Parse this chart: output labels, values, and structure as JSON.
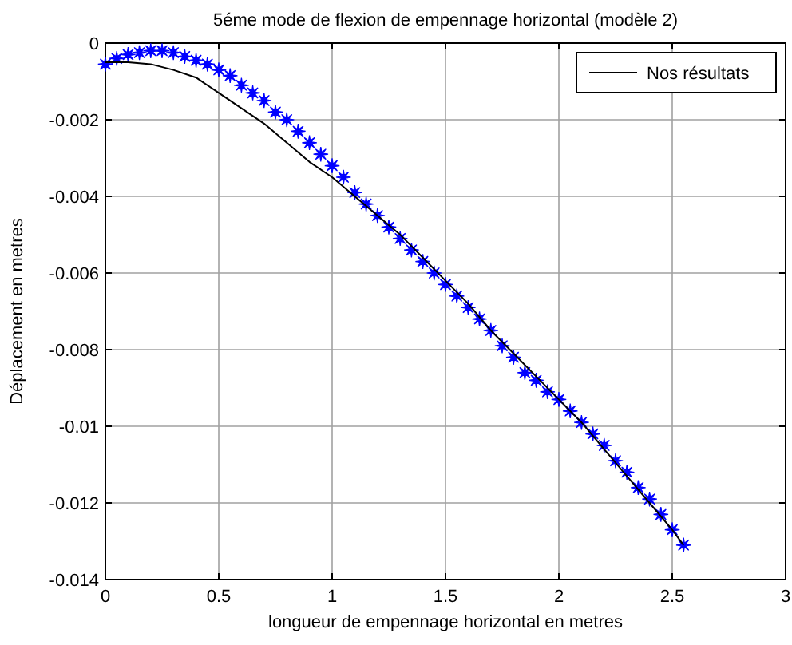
{
  "chart_data": {
    "type": "line",
    "title": "5éme mode de flexion de empennage horizontal (modèle 2)",
    "xlabel": "longueur de empennage horizontal en metres",
    "ylabel": "Déplacement en metres",
    "xlim": [
      0,
      3
    ],
    "xticks": [
      0,
      0.5,
      1,
      1.5,
      2,
      2.5,
      3
    ],
    "ylim": [
      -0.014,
      0
    ],
    "yticks": [
      -0.014,
      -0.012,
      -0.01,
      -0.008,
      -0.006,
      -0.004,
      -0.002,
      0
    ],
    "grid": true,
    "legend": "top right",
    "series": [
      {
        "type": "scatter",
        "marker": "star",
        "color": "#0000ff",
        "x": [
          0,
          0.05,
          0.1,
          0.15,
          0.2,
          0.25,
          0.3,
          0.35,
          0.4,
          0.45,
          0.5,
          0.55,
          0.6,
          0.65,
          0.7,
          0.75,
          0.8,
          0.85,
          0.9,
          0.95,
          1,
          1.05,
          1.1,
          1.15,
          1.2,
          1.25,
          1.3,
          1.35,
          1.4,
          1.45,
          1.5,
          1.55,
          1.6,
          1.65,
          1.7,
          1.75,
          1.8,
          1.85,
          1.9,
          1.95,
          2,
          2.05,
          2.1,
          2.15,
          2.2,
          2.25,
          2.3,
          2.35,
          2.4,
          2.45,
          2.5,
          2.55
        ],
        "values": [
          -0.00055,
          -0.0004,
          -0.0003,
          -0.00025,
          -0.0002,
          -0.0002,
          -0.00025,
          -0.00035,
          -0.00045,
          -0.00055,
          -0.0007,
          -0.00085,
          -0.0011,
          -0.0013,
          -0.0015,
          -0.0018,
          -0.002,
          -0.0023,
          -0.0026,
          -0.0029,
          -0.0032,
          -0.0035,
          -0.0039,
          -0.0042,
          -0.0045,
          -0.0048,
          -0.0051,
          -0.0054,
          -0.0057,
          -0.006,
          -0.0063,
          -0.0066,
          -0.0069,
          -0.0072,
          -0.0075,
          -0.0079,
          -0.0082,
          -0.0086,
          -0.0088,
          -0.0091,
          -0.0093,
          -0.0096,
          -0.0099,
          -0.0102,
          -0.0105,
          -0.0109,
          -0.0112,
          -0.0116,
          -0.0119,
          -0.0123,
          -0.0127,
          -0.0131
        ]
      },
      {
        "type": "line",
        "name": "Nos résultats",
        "color": "#000000",
        "line_style": "solid",
        "x": [
          0,
          0.1,
          0.2,
          0.3,
          0.4,
          0.5,
          0.6,
          0.7,
          0.8,
          0.9,
          1,
          1.1,
          1.2,
          1.3,
          1.4,
          1.5,
          1.6,
          1.7,
          1.8,
          1.9,
          2,
          2.1,
          2.2,
          2.3,
          2.4,
          2.5,
          2.55
        ],
        "values": [
          -0.0005,
          -0.0005,
          -0.00055,
          -0.0007,
          -0.0009,
          -0.0013,
          -0.0017,
          -0.0021,
          -0.0026,
          -0.0031,
          -0.0035,
          -0.004,
          -0.0045,
          -0.005,
          -0.0056,
          -0.0062,
          -0.0068,
          -0.0075,
          -0.0081,
          -0.0087,
          -0.0093,
          -0.0099,
          -0.0106,
          -0.0113,
          -0.012,
          -0.0127,
          -0.0131
        ]
      }
    ]
  }
}
